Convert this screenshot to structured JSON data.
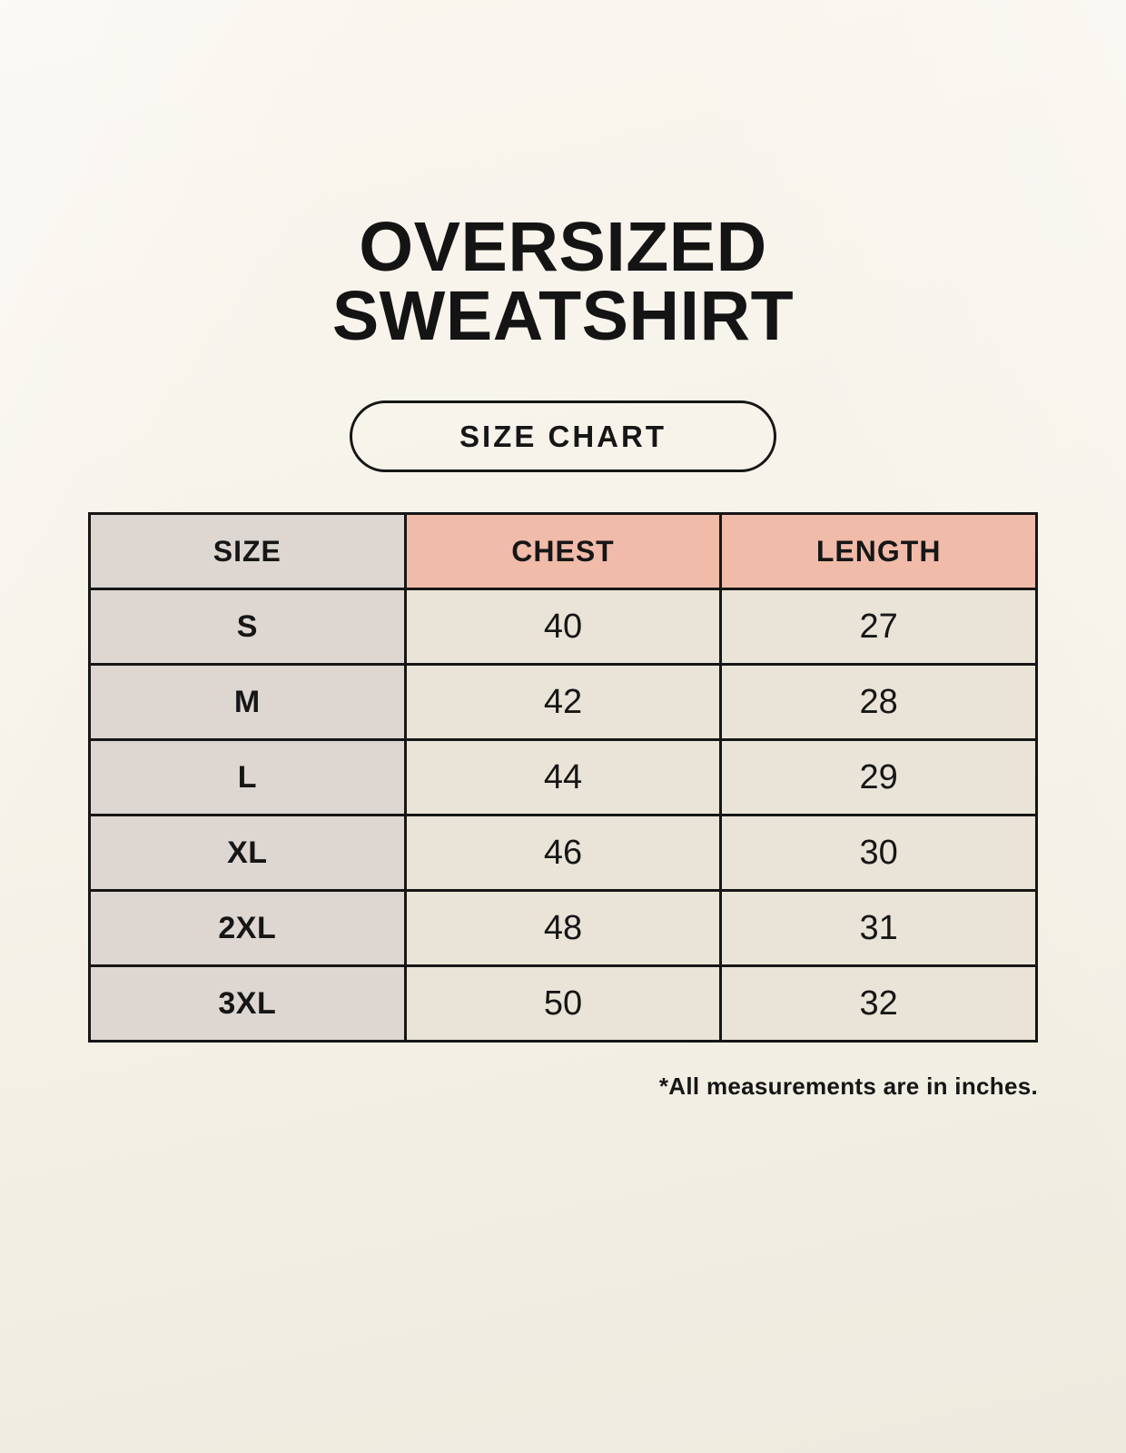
{
  "header": {
    "title_line1": "OVERSIZED",
    "title_line2": "SWEATSHIRT",
    "badge_label": "SIZE CHART"
  },
  "chart_data": {
    "type": "table",
    "title": "OVERSIZED SWEATSHIRT SIZE CHART",
    "columns": [
      "SIZE",
      "CHEST",
      "LENGTH"
    ],
    "rows": [
      [
        "S",
        40,
        27
      ],
      [
        "M",
        42,
        28
      ],
      [
        "L",
        44,
        29
      ],
      [
        "XL",
        46,
        30
      ],
      [
        "2XL",
        48,
        31
      ],
      [
        "3XL",
        50,
        32
      ]
    ],
    "units": "inches",
    "note": "*All measurements are in inches."
  },
  "colors": {
    "background": "#f6f2e9",
    "size_column_bg": "#ddd6d1",
    "measure_header_bg": "#f1bba9",
    "value_cell_bg": "#eae4d8",
    "border": "#161616",
    "text": "#161616"
  }
}
